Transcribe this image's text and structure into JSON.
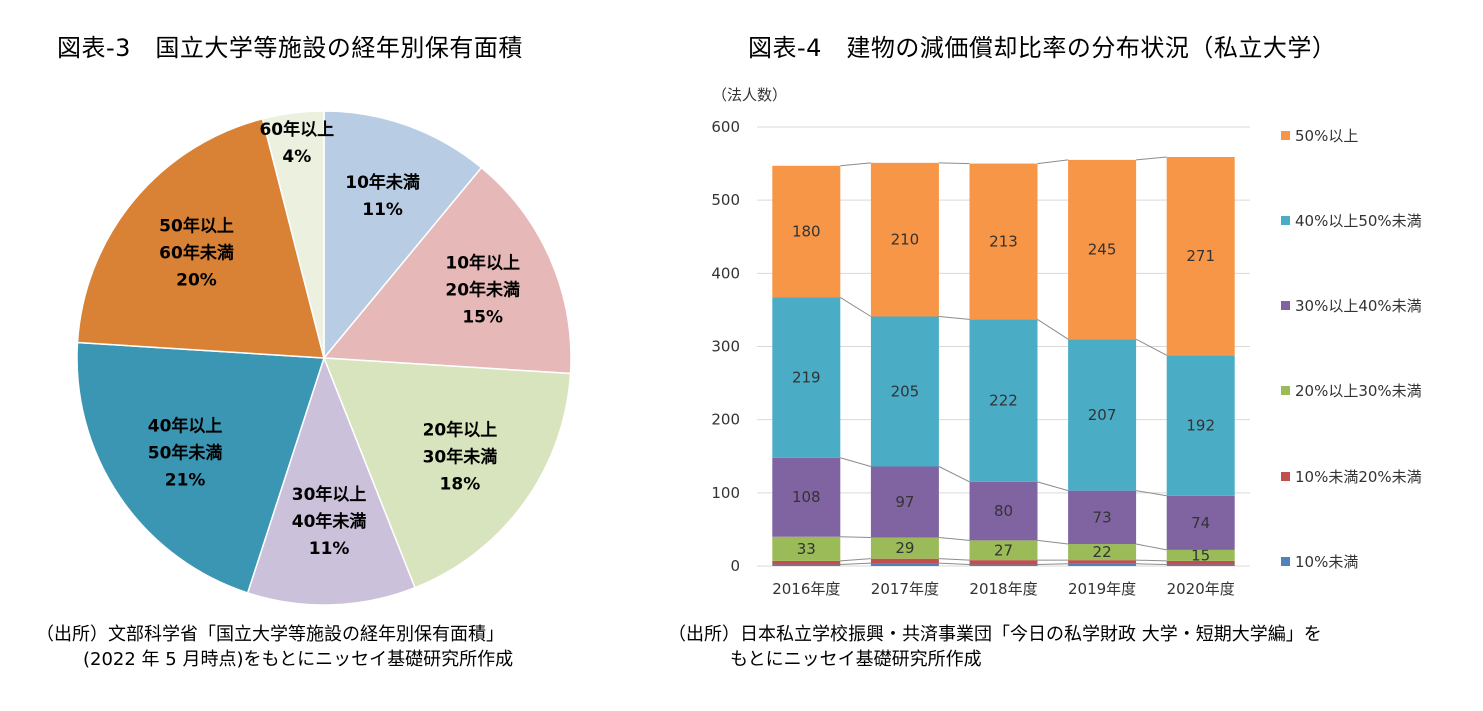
{
  "left": {
    "title": "図表-3　国立大学等施設の経年別保有面積",
    "source_line1": "（出所）文部科学省「国立大学等施設の経年別保有面積」",
    "source_line2": "(2022 年 5 月時点)をもとにニッセイ基礎研究所作成"
  },
  "right": {
    "title": "図表-4　建物の減価償却比率の分布状況（私立大学）",
    "source_line1": "（出所）日本私立学校振興・共済事業団「今日の私学財政 大学・短期大学編」を",
    "source_line2": "もとにニッセイ基礎研究所作成"
  },
  "chart_data": [
    {
      "type": "pie",
      "title": "図表-3　国立大学等施設の経年別保有面積",
      "slices": [
        {
          "label": [
            "10年未満",
            "11%"
          ],
          "value": 11,
          "color": "#b8cce4"
        },
        {
          "label": [
            "10年以上",
            "20年未満",
            "15%"
          ],
          "value": 15,
          "color": "#e6b9b8"
        },
        {
          "label": [
            "20年以上",
            "30年未満",
            "18%"
          ],
          "value": 18,
          "color": "#d7e4bd"
        },
        {
          "label": [
            "30年以上",
            "40年未満",
            "11%"
          ],
          "value": 11,
          "color": "#ccc1da"
        },
        {
          "label": [
            "40年以上",
            "50年未満",
            "21%"
          ],
          "value": 21,
          "color": "#3b96b3"
        },
        {
          "label": [
            "50年以上",
            "60年未満",
            "20%"
          ],
          "value": 20,
          "color": "#d98236"
        },
        {
          "label": [
            "60年以上",
            "4%"
          ],
          "value": 4,
          "color": "#ebf1de"
        }
      ]
    },
    {
      "type": "bar",
      "stacked": true,
      "title": "図表-4　建物の減価償却比率の分布状況（私立大学）",
      "ylabel": "（法人数）",
      "ylim": [
        0,
        600
      ],
      "yticks": [
        0,
        100,
        200,
        300,
        400,
        500,
        600
      ],
      "grid": true,
      "legend_position": "right",
      "categories": [
        "2016年度",
        "2017年度",
        "2018年度",
        "2019年度",
        "2020年度"
      ],
      "series": [
        {
          "name": "10%未満",
          "color": "#4e81bd",
          "values": [
            2,
            4,
            2,
            3,
            2
          ],
          "labels": [
            "",
            "",
            "",
            "",
            ""
          ]
        },
        {
          "name": "10%未満20%未満",
          "color": "#c0504d",
          "values": [
            5,
            6,
            6,
            5,
            5
          ],
          "labels": [
            "",
            "",
            "",
            "",
            ""
          ]
        },
        {
          "name": "20%以上30%未満",
          "color": "#9bbb59",
          "values": [
            33,
            29,
            27,
            22,
            15
          ],
          "labels": [
            "33",
            "29",
            "27",
            "22",
            "15"
          ]
        },
        {
          "name": "30%以上40%未満",
          "color": "#8064a2",
          "values": [
            108,
            97,
            80,
            73,
            74
          ],
          "labels": [
            "108",
            "97",
            "80",
            "73",
            "74"
          ]
        },
        {
          "name": "40%以上50%未満",
          "color": "#4bacc6",
          "values": [
            219,
            205,
            222,
            207,
            192
          ],
          "labels": [
            "219",
            "205",
            "222",
            "207",
            "192"
          ]
        },
        {
          "name": "50%以上",
          "color": "#f79646",
          "values": [
            180,
            210,
            213,
            245,
            271
          ],
          "labels": [
            "180",
            "210",
            "213",
            "245",
            "271"
          ]
        }
      ]
    }
  ]
}
